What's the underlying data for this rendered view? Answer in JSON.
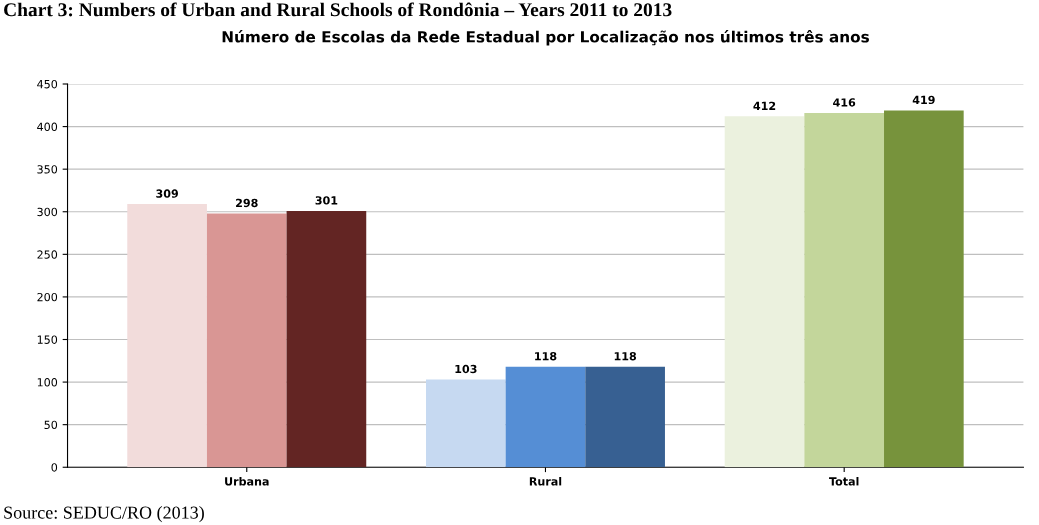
{
  "chart_data": {
    "type": "bar",
    "title": "Chart 3: Numbers of Urban and Rural Schools of Rondônia – Years 2011 to 2013",
    "subtitle": "Número de Escolas da Rede Estadual por Localização nos últimos três anos",
    "categories": [
      "Urbana",
      "Rural",
      "Total"
    ],
    "series": [
      {
        "colors": [
          "#f2dcdb",
          "#c6d9f1",
          "#ebf1de"
        ],
        "values": [
          309,
          103,
          412
        ]
      },
      {
        "colors": [
          "#d99694",
          "#558ed5",
          "#c3d69b"
        ],
        "values": [
          298,
          118,
          416
        ]
      },
      {
        "colors": [
          "#632523",
          "#376092",
          "#77933c"
        ],
        "values": [
          301,
          118,
          419
        ]
      }
    ],
    "ylim": [
      0,
      450
    ],
    "yticks": [
      0,
      50,
      100,
      150,
      200,
      250,
      300,
      350,
      400,
      450
    ],
    "grid": "y",
    "data_labels": true,
    "legend": false,
    "annotations": [
      "Source: SEDUC/RO (2013)"
    ]
  }
}
